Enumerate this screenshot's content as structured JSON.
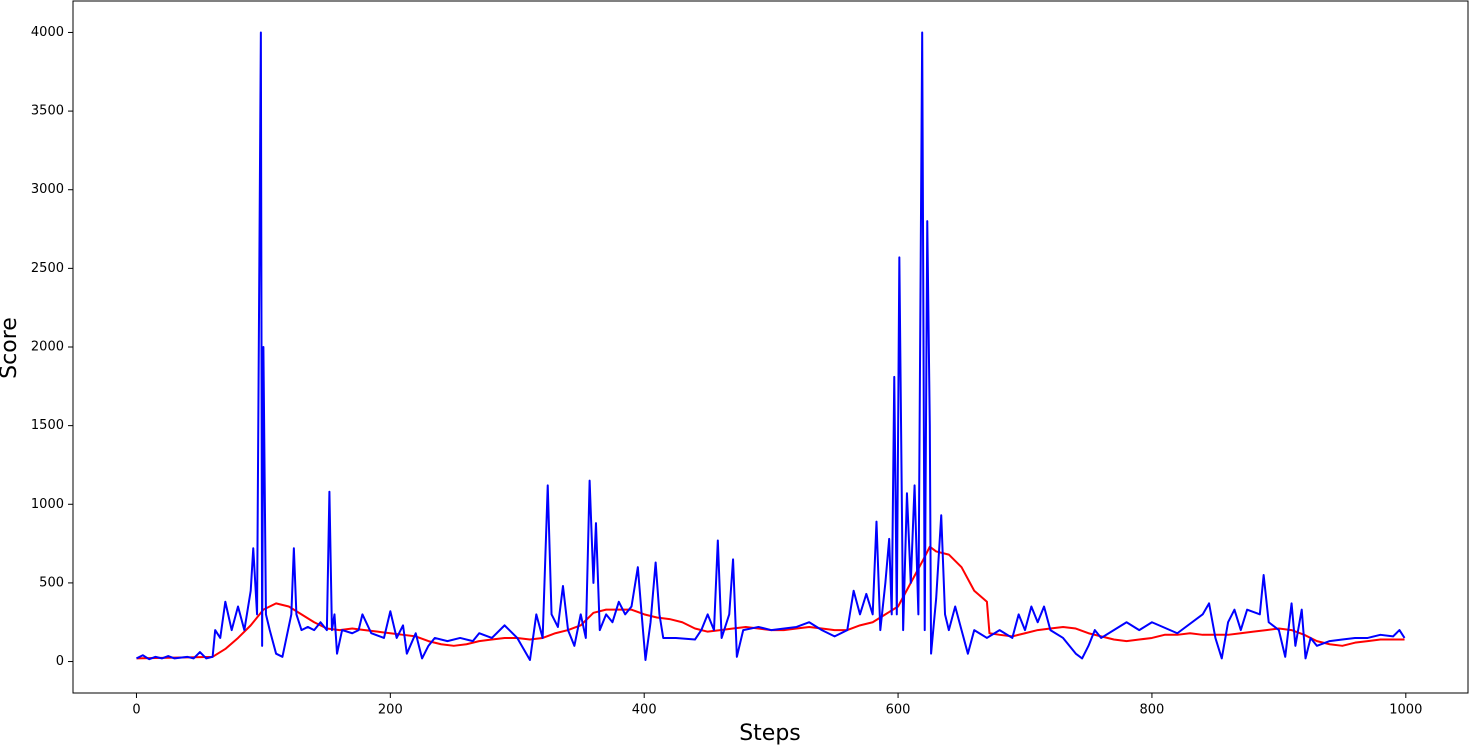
{
  "chart_data": {
    "type": "line",
    "x_label": "Steps",
    "y_label": "Score",
    "xlim": [
      -50,
      1049
    ],
    "ylim": [
      -200,
      4200
    ],
    "xticks": [
      0,
      200,
      400,
      600,
      800,
      1000
    ],
    "yticks": [
      0,
      500,
      1000,
      1500,
      2000,
      2500,
      3000,
      3500,
      4000
    ],
    "grid": false,
    "series": [
      {
        "color": "#ff0000",
        "x": [
          0,
          60,
          70,
          80,
          90,
          100,
          110,
          120,
          130,
          140,
          150,
          160,
          170,
          180,
          190,
          200,
          210,
          220,
          230,
          240,
          250,
          260,
          270,
          280,
          290,
          300,
          310,
          320,
          330,
          340,
          350,
          360,
          370,
          380,
          390,
          400,
          410,
          420,
          430,
          440,
          450,
          460,
          470,
          480,
          490,
          500,
          510,
          520,
          530,
          540,
          550,
          560,
          570,
          580,
          590,
          600,
          610,
          620,
          625,
          630,
          640,
          650,
          660,
          670,
          672,
          680,
          690,
          700,
          710,
          720,
          730,
          740,
          750,
          760,
          770,
          780,
          790,
          800,
          810,
          820,
          830,
          840,
          850,
          860,
          870,
          880,
          890,
          900,
          910,
          920,
          930,
          940,
          950,
          960,
          970,
          980,
          990,
          999
        ],
        "values": [
          20,
          30,
          80,
          150,
          230,
          330,
          370,
          350,
          300,
          250,
          210,
          200,
          210,
          200,
          190,
          180,
          170,
          160,
          130,
          110,
          100,
          110,
          130,
          140,
          150,
          150,
          140,
          150,
          180,
          200,
          230,
          310,
          330,
          330,
          330,
          300,
          280,
          270,
          250,
          210,
          190,
          200,
          210,
          220,
          210,
          200,
          200,
          210,
          220,
          210,
          200,
          200,
          230,
          250,
          300,
          350,
          500,
          650,
          730,
          700,
          680,
          600,
          450,
          380,
          180,
          170,
          160,
          180,
          200,
          210,
          220,
          210,
          180,
          160,
          140,
          130,
          140,
          150,
          170,
          170,
          180,
          170,
          170,
          170,
          180,
          190,
          200,
          210,
          200,
          170,
          130,
          110,
          100,
          120,
          130,
          140,
          140,
          140
        ]
      },
      {
        "color": "#0000ff",
        "x": [
          0,
          5,
          10,
          15,
          20,
          25,
          30,
          40,
          45,
          50,
          55,
          60,
          62,
          66,
          70,
          75,
          80,
          85,
          90,
          92,
          95,
          98,
          99,
          100,
          102,
          105,
          110,
          115,
          122,
          124,
          126,
          130,
          135,
          140,
          145,
          150,
          152,
          154,
          156,
          158,
          162,
          170,
          175,
          178,
          185,
          195,
          200,
          205,
          210,
          213,
          220,
          225,
          230,
          235,
          245,
          255,
          265,
          270,
          280,
          290,
          300,
          310,
          315,
          320,
          324,
          327,
          332,
          336,
          340,
          345,
          350,
          354,
          357,
          360,
          362,
          365,
          370,
          375,
          380,
          385,
          390,
          395,
          398,
          401,
          405,
          409,
          412,
          415,
          425,
          440,
          445,
          450,
          455,
          458,
          461,
          467,
          470,
          473,
          478,
          490,
          500,
          520,
          530,
          540,
          550,
          560,
          565,
          570,
          575,
          580,
          583,
          586,
          590,
          593,
          595,
          597,
          599,
          601,
          604,
          607,
          610,
          613,
          616,
          619,
          621,
          623,
          625,
          626,
          630,
          634,
          637,
          640,
          645,
          650,
          655,
          660,
          670,
          680,
          690,
          695,
          700,
          705,
          710,
          715,
          720,
          730,
          740,
          745,
          750,
          755,
          760,
          780,
          790,
          800,
          820,
          840,
          845,
          850,
          855,
          860,
          865,
          870,
          875,
          885,
          888,
          892,
          900,
          905,
          910,
          913,
          918,
          921,
          925,
          930,
          940,
          950,
          960,
          970,
          980,
          990,
          995,
          999
        ],
        "values": [
          20,
          40,
          15,
          30,
          20,
          35,
          20,
          30,
          20,
          60,
          20,
          30,
          200,
          150,
          380,
          200,
          350,
          200,
          450,
          720,
          300,
          4000,
          100,
          2000,
          300,
          200,
          50,
          30,
          300,
          720,
          300,
          200,
          220,
          200,
          250,
          200,
          1080,
          200,
          300,
          50,
          200,
          180,
          200,
          300,
          180,
          150,
          320,
          150,
          230,
          50,
          180,
          20,
          100,
          150,
          130,
          150,
          130,
          180,
          150,
          230,
          150,
          10,
          300,
          150,
          1120,
          300,
          220,
          480,
          200,
          100,
          300,
          150,
          1150,
          500,
          880,
          200,
          300,
          250,
          380,
          300,
          350,
          600,
          300,
          10,
          250,
          630,
          300,
          150,
          150,
          140,
          200,
          300,
          200,
          770,
          150,
          300,
          650,
          30,
          200,
          220,
          200,
          220,
          250,
          200,
          160,
          200,
          450,
          300,
          430,
          300,
          890,
          200,
          500,
          780,
          300,
          1810,
          300,
          2570,
          200,
          1070,
          500,
          1120,
          300,
          4000,
          200,
          2800,
          1500,
          50,
          400,
          930,
          300,
          200,
          350,
          200,
          50,
          200,
          150,
          200,
          150,
          300,
          200,
          350,
          250,
          350,
          200,
          150,
          50,
          20,
          100,
          200,
          150,
          250,
          200,
          250,
          180,
          300,
          370,
          150,
          20,
          250,
          330,
          200,
          330,
          300,
          550,
          250,
          200,
          30,
          370,
          100,
          330,
          20,
          150,
          100,
          130,
          140,
          150,
          150,
          170,
          160,
          200,
          150
        ]
      }
    ]
  }
}
